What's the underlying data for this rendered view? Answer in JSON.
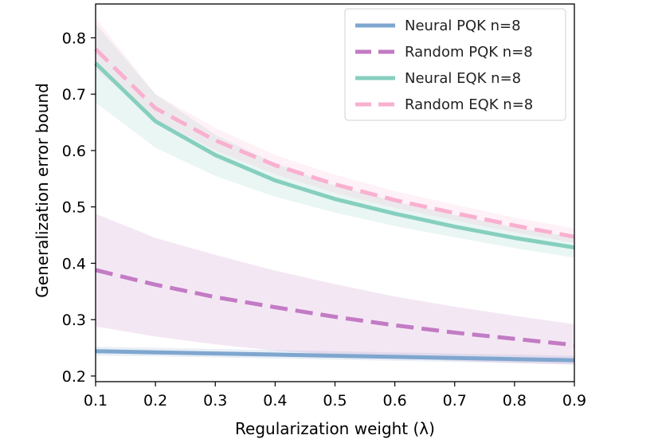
{
  "chart_data": {
    "type": "line",
    "title": "",
    "xlabel": "Regularization weight (λ)",
    "ylabel": "Generalization error bound",
    "xlim": [
      0.1,
      0.9
    ],
    "ylim": [
      0.19,
      0.86
    ],
    "x": [
      0.1,
      0.2,
      0.3,
      0.4,
      0.5,
      0.6,
      0.7,
      0.8,
      0.9
    ],
    "x_ticks": [
      "0.1",
      "0.2",
      "0.3",
      "0.4",
      "0.5",
      "0.6",
      "0.7",
      "0.8",
      "0.9"
    ],
    "y_ticks": [
      "0.2",
      "0.3",
      "0.4",
      "0.5",
      "0.6",
      "0.7",
      "0.8"
    ],
    "grid": false,
    "legend_position": "top-right",
    "series": [
      {
        "name": "Neural PQK n=8",
        "color": "#7fa6cf",
        "dash": "solid",
        "values": [
          0.244,
          0.242,
          0.24,
          0.238,
          0.236,
          0.234,
          0.232,
          0.23,
          0.228
        ],
        "lower": [
          0.236,
          0.235,
          0.233,
          0.231,
          0.229,
          0.227,
          0.225,
          0.223,
          0.221
        ],
        "upper": [
          0.252,
          0.25,
          0.248,
          0.246,
          0.244,
          0.242,
          0.24,
          0.238,
          0.236
        ]
      },
      {
        "name": "Random PQK n=8",
        "color": "#c27bc4",
        "dash": "dashed",
        "values": [
          0.388,
          0.362,
          0.34,
          0.322,
          0.305,
          0.29,
          0.277,
          0.266,
          0.255
        ],
        "lower": [
          0.288,
          0.27,
          0.256,
          0.245,
          0.238,
          0.232,
          0.227,
          0.223,
          0.22
        ],
        "upper": [
          0.488,
          0.445,
          0.415,
          0.387,
          0.363,
          0.341,
          0.323,
          0.307,
          0.292
        ]
      },
      {
        "name": "Neural EQK n=8",
        "color": "#86cfbf",
        "dash": "solid",
        "values": [
          0.755,
          0.652,
          0.592,
          0.547,
          0.514,
          0.488,
          0.465,
          0.445,
          0.428
        ],
        "lower": [
          0.685,
          0.605,
          0.555,
          0.518,
          0.49,
          0.466,
          0.446,
          0.427,
          0.41
        ],
        "upper": [
          0.825,
          0.7,
          0.628,
          0.577,
          0.538,
          0.51,
          0.486,
          0.464,
          0.446
        ]
      },
      {
        "name": "Random EQK n=8",
        "color": "#f9b0d0",
        "dash": "dashed",
        "values": [
          0.78,
          0.675,
          0.618,
          0.574,
          0.54,
          0.512,
          0.489,
          0.467,
          0.447
        ],
        "lower": [
          0.745,
          0.655,
          0.6,
          0.558,
          0.525,
          0.498,
          0.476,
          0.455,
          0.436
        ],
        "upper": [
          0.835,
          0.7,
          0.64,
          0.592,
          0.557,
          0.528,
          0.504,
          0.481,
          0.462
        ]
      }
    ]
  }
}
